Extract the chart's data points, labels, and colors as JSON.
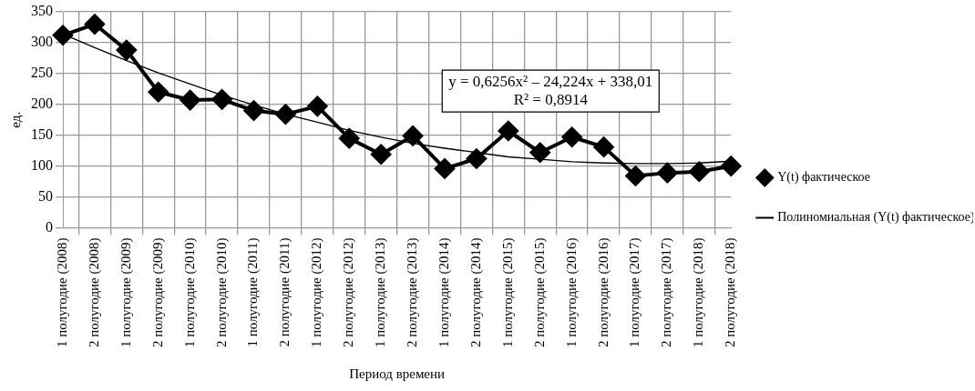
{
  "chart_data": {
    "type": "line",
    "xlabel": "Период времени",
    "ylabel": "ед.",
    "categories": [
      "1 полугодие (2008)",
      "2 полугодие (2008)",
      "1 полугодие (2009)",
      "2 полугодие (2009)",
      "1 полугодие (2010)",
      "2 полугодие (2010)",
      "1 полугодие (2011)",
      "2 полугодие (2011)",
      "1 полугодие (2012)",
      "2 полугодие (2012)",
      "1 полугодие (2013)",
      "2 полугодие (2013)",
      "1 полугодие (2014)",
      "2 полугодие (2014)",
      "1 полугодие (2015)",
      "2 полугодие (2015)",
      "1 полугодие (2016)",
      "2 полугодие (2016)",
      "1 полугодие (2017)",
      "2 полугодие (2017)",
      "1 полугодие (2018)",
      "2 полугодие (2018)"
    ],
    "series": [
      {
        "name": "Y(t) фактическое",
        "color": "#000000",
        "marker": "diamond",
        "values": [
          312,
          330,
          288,
          220,
          207,
          208,
          190,
          184,
          197,
          145,
          119,
          149,
          96,
          112,
          157,
          122,
          147,
          131,
          84,
          89,
          91,
          100
        ]
      },
      {
        "name": "Полиномиальная (Y(t) фактическое)",
        "type": "line",
        "color": "#000000",
        "marker": "none",
        "values": [
          314,
          292,
          271,
          251,
          233,
          215,
          199,
          184,
          171,
          158,
          147,
          137,
          129,
          122,
          115,
          111,
          107,
          105,
          104,
          104,
          105,
          108
        ]
      }
    ],
    "ylim": [
      0,
      350
    ],
    "yticks": [
      0,
      50,
      100,
      150,
      200,
      250,
      300,
      350
    ],
    "grid": true,
    "legend": "right",
    "line_style": "solid",
    "annotations": [
      "y = 0,6256x² – 24,224x + 338,01",
      "R² = 0,8914"
    ]
  }
}
